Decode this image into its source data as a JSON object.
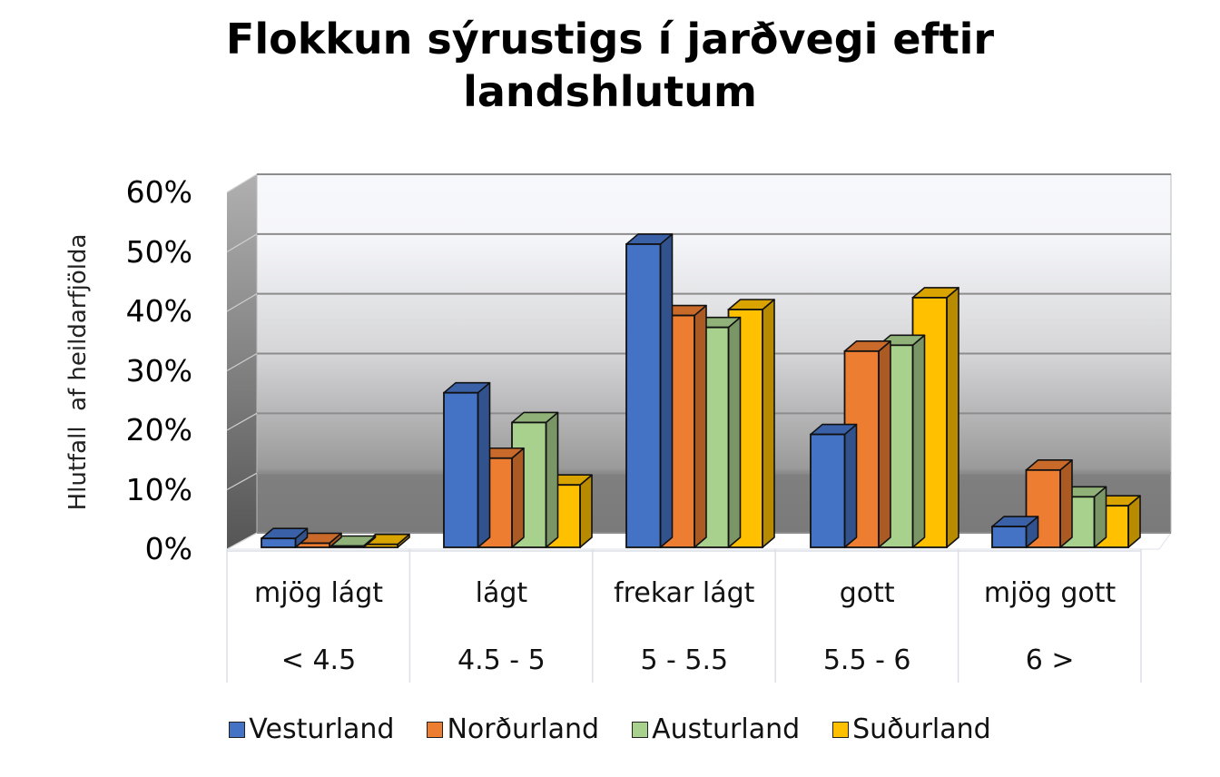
{
  "chart_data": {
    "type": "bar",
    "title": "Flokkun sýrustigs í jarðvegi eftir landshlutum",
    "title_lines": [
      "Flokkun sýrustigs í jarðvegi eftir",
      "landshlutum"
    ],
    "xlabel": "",
    "ylabel": "Hlutfall  af heildarfjölda",
    "ylim": [
      0,
      60
    ],
    "yticks": [
      "0%",
      "10%",
      "20%",
      "30%",
      "40%",
      "50%",
      "60%"
    ],
    "grid": true,
    "legend_position": "bottom",
    "categories": [
      "mjög lágt < 4.5",
      "lágt 4.5 - 5",
      "frekar lágt 5 - 5.5",
      "gott 5.5 - 6",
      "mjög gott 6 >"
    ],
    "category_labels": [
      {
        "name": "mjög lágt",
        "range": "< 4.5"
      },
      {
        "name": "lágt",
        "range": "4.5 - 5"
      },
      {
        "name": "frekar lágt",
        "range": "5 - 5.5"
      },
      {
        "name": "gott",
        "range": "5.5 - 6"
      },
      {
        "name": "mjög gott",
        "range": "6 >"
      }
    ],
    "series": [
      {
        "name": "Vesturland",
        "color": "#4472C4",
        "values": [
          1.5,
          26,
          51,
          19,
          3.5
        ]
      },
      {
        "name": "Norðurland",
        "color": "#ED7D31",
        "values": [
          0.7,
          15,
          39,
          33,
          13
        ]
      },
      {
        "name": "Austurland",
        "color": "#A9D18E",
        "values": [
          0.1,
          21,
          37,
          34,
          8.5
        ]
      },
      {
        "name": "Suðurland",
        "color": "#FFC000",
        "values": [
          0.5,
          10.5,
          40,
          42,
          7
        ]
      }
    ]
  }
}
